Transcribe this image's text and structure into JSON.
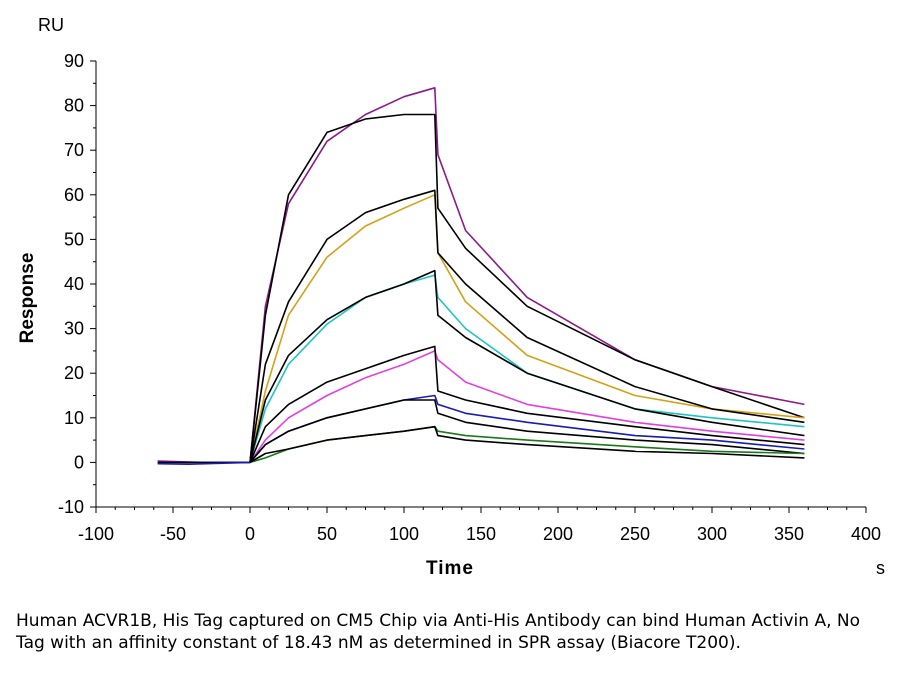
{
  "chart_data": {
    "type": "line",
    "xlabel": "Time",
    "ylabel": "Response",
    "x_unit": "s",
    "y_unit": "RU",
    "xlim": [
      -100,
      400
    ],
    "ylim": [
      -10,
      90
    ],
    "x_ticks": [
      -100,
      -50,
      0,
      50,
      100,
      150,
      200,
      250,
      300,
      350,
      400
    ],
    "y_ticks": [
      -10,
      0,
      10,
      20,
      30,
      40,
      50,
      60,
      70,
      80,
      90
    ],
    "grid": false,
    "legend": "none",
    "series": [
      {
        "color": "#8b1a8b",
        "x": [
          -60,
          -30,
          0,
          10,
          25,
          50,
          75,
          100,
          120,
          122,
          140,
          180,
          250,
          300,
          360
        ],
        "values": [
          0.3,
          0,
          0,
          35,
          58,
          72,
          78,
          82,
          84,
          69,
          52,
          37,
          23,
          17,
          13
        ]
      },
      {
        "color": "#000000",
        "x": [
          -60,
          -30,
          0,
          10,
          25,
          50,
          75,
          100,
          120,
          122,
          140,
          180,
          250,
          300,
          360
        ],
        "values": [
          0,
          0,
          0,
          33,
          60,
          74,
          77,
          78,
          78,
          57,
          48,
          35,
          23,
          17,
          10
        ]
      },
      {
        "color": "#d4a017",
        "x": [
          0,
          10,
          25,
          50,
          75,
          100,
          120,
          122,
          140,
          180,
          250,
          300,
          360
        ],
        "values": [
          0,
          16,
          33,
          46,
          53,
          57,
          60,
          47,
          36,
          24,
          15,
          12,
          10
        ]
      },
      {
        "color": "#000000",
        "x": [
          0,
          10,
          25,
          50,
          75,
          100,
          120,
          122,
          140,
          180,
          250,
          300,
          360
        ],
        "values": [
          0,
          22,
          36,
          50,
          56,
          59,
          61,
          47,
          40,
          28,
          17,
          12,
          9
        ]
      },
      {
        "color": "#1fc4c4",
        "x": [
          0,
          10,
          25,
          50,
          75,
          100,
          120,
          122,
          140,
          180,
          250,
          300,
          360
        ],
        "values": [
          0,
          12,
          22,
          31,
          37,
          40,
          42,
          37,
          30,
          20,
          12,
          10,
          8
        ]
      },
      {
        "color": "#000000",
        "x": [
          0,
          10,
          25,
          50,
          75,
          100,
          120,
          122,
          140,
          180,
          250,
          300,
          360
        ],
        "values": [
          0,
          14,
          24,
          32,
          37,
          40,
          43,
          33,
          28,
          20,
          12,
          9,
          6
        ]
      },
      {
        "color": "#e040e0",
        "x": [
          0,
          10,
          25,
          50,
          75,
          100,
          120,
          122,
          140,
          180,
          250,
          300,
          360
        ],
        "values": [
          0,
          5,
          10,
          15,
          19,
          22,
          25,
          23,
          18,
          13,
          9,
          7,
          5
        ]
      },
      {
        "color": "#000000",
        "x": [
          0,
          10,
          25,
          50,
          75,
          100,
          120,
          122,
          140,
          180,
          250,
          300,
          360
        ],
        "values": [
          0,
          8,
          13,
          18,
          21,
          24,
          26,
          16,
          14,
          11,
          8,
          6,
          4
        ]
      },
      {
        "color": "#1a1ab4",
        "x": [
          0,
          10,
          25,
          50,
          75,
          100,
          120,
          122,
          140,
          180,
          250,
          300,
          360
        ],
        "values": [
          0,
          4,
          7,
          10,
          12,
          14,
          15,
          13,
          11,
          9,
          6,
          5,
          3
        ]
      },
      {
        "color": "#000000",
        "x": [
          0,
          10,
          25,
          50,
          75,
          100,
          120,
          122,
          140,
          180,
          250,
          300,
          360
        ],
        "values": [
          0,
          4,
          7,
          10,
          12,
          14,
          14,
          11,
          9,
          7,
          5,
          4,
          2
        ]
      },
      {
        "color": "#1a7a1a",
        "x": [
          0,
          10,
          25,
          50,
          75,
          100,
          120,
          122,
          140,
          180,
          250,
          300,
          360
        ],
        "values": [
          0,
          1,
          3,
          5,
          6,
          7,
          8,
          7,
          6,
          5,
          3.5,
          2.5,
          2
        ]
      },
      {
        "color": "#000000",
        "x": [
          0,
          10,
          25,
          50,
          75,
          100,
          120,
          122,
          140,
          180,
          250,
          300,
          360
        ],
        "values": [
          0,
          2,
          3,
          5,
          6,
          7,
          8,
          6,
          5,
          4,
          2.5,
          2,
          1
        ]
      },
      {
        "color": "#1a1ab4",
        "x": [
          -60,
          -40,
          -20,
          0
        ],
        "values": [
          -0.3,
          -0.4,
          -0.2,
          0
        ]
      }
    ]
  },
  "caption": "Human ACVR1B, His Tag captured on CM5 Chip via Anti-His Antibody can bind Human Activin A, No Tag with an affinity constant of 18.43 nM as determined in SPR assay (Biacore T200)."
}
